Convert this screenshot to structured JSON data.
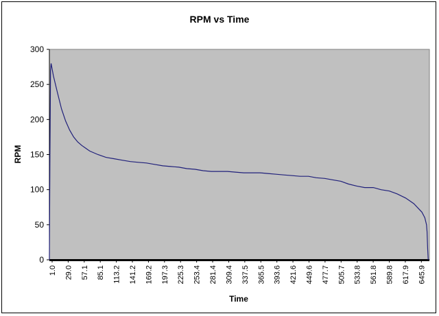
{
  "chart_data": {
    "type": "line",
    "title": "RPM vs Time",
    "xlabel": "Time",
    "ylabel": "RPM",
    "ylim": [
      0,
      300
    ],
    "yticks": [
      0,
      50,
      100,
      150,
      200,
      250,
      300
    ],
    "xtick_labels": [
      "1.0",
      "29.0",
      "57.1",
      "85.1",
      "113.2",
      "141.2",
      "169.2",
      "197.3",
      "225.3",
      "253.4",
      "281.4",
      "309.4",
      "337.5",
      "365.5",
      "393.6",
      "421.6",
      "449.6",
      "477.7",
      "505.7",
      "533.8",
      "561.8",
      "589.8",
      "617.9",
      "645.9"
    ],
    "xlim": [
      1.0,
      659.0
    ],
    "plot_background": "#c0c0c0",
    "line_color": "#1f1f7a",
    "grid": false,
    "legend": false,
    "series": [
      {
        "x": [
          1.0,
          2.0,
          3.0,
          4.0,
          8.0,
          15.0,
          22.0,
          29.0,
          36.0,
          43.0,
          50.0,
          57.1,
          64.0,
          71.0,
          85.1,
          99.0,
          113.2,
          127.0,
          141.2,
          155.0,
          169.2,
          183.0,
          197.3,
          211.0,
          225.3,
          239.0,
          253.4,
          267.0,
          281.4,
          295.0,
          309.4,
          323.0,
          337.5,
          351.0,
          365.5,
          379.0,
          393.6,
          407.0,
          421.6,
          435.0,
          449.6,
          463.0,
          477.7,
          491.0,
          505.7,
          519.0,
          533.8,
          547.0,
          561.8,
          575.0,
          589.8,
          603.0,
          617.9,
          625.0,
          632.0,
          639.0,
          645.9,
          651.0,
          654.0,
          655.0,
          656.0,
          657.0
        ],
        "y": [
          0,
          150,
          270,
          280,
          262,
          238,
          215,
          198,
          185,
          175,
          168,
          163,
          159,
          155,
          150,
          146,
          144,
          142,
          140,
          139,
          138,
          136,
          134,
          133,
          132,
          130,
          129,
          127,
          126,
          126,
          126,
          125,
          124,
          124,
          124,
          123,
          122,
          121,
          120,
          119,
          119,
          117,
          116,
          114,
          112,
          108,
          105,
          103,
          103,
          100,
          98,
          94,
          88,
          84,
          80,
          74,
          68,
          60,
          50,
          40,
          15,
          0
        ]
      }
    ]
  }
}
